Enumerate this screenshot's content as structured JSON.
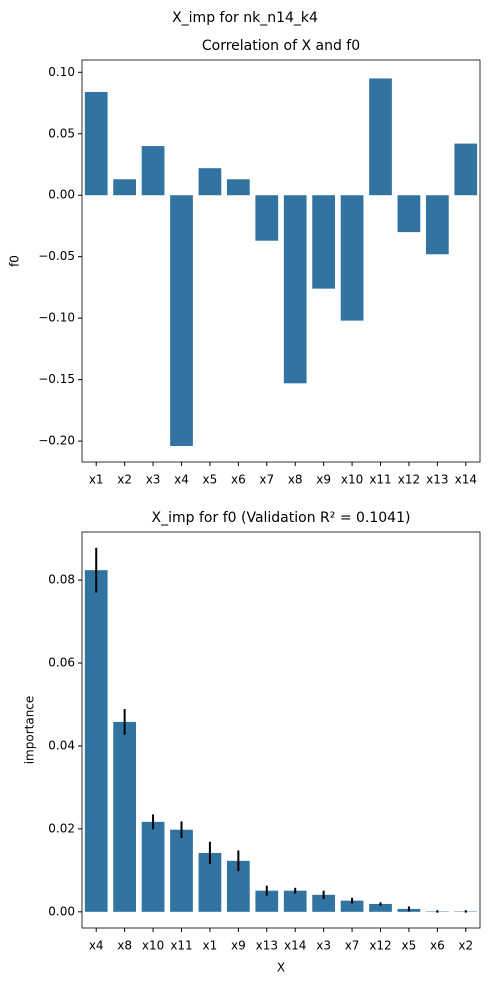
{
  "title": "X_imp for nk_n14_k4",
  "chart_data": [
    {
      "type": "bar",
      "title": "Correlation of X and f0",
      "y_label": "f0",
      "categories": [
        "x1",
        "x2",
        "x3",
        "x4",
        "x5",
        "x6",
        "x7",
        "x8",
        "x9",
        "x10",
        "x11",
        "x12",
        "x13",
        "x14"
      ],
      "values": [
        0.084,
        0.013,
        0.04,
        -0.204,
        0.022,
        0.013,
        -0.037,
        -0.153,
        -0.076,
        -0.102,
        0.095,
        -0.03,
        -0.048,
        0.042
      ],
      "color": "#3274a1",
      "ylim": [
        -0.217,
        0.11
      ],
      "yticks": [
        {
          "value": -0.2,
          "label": "−0.20"
        },
        {
          "value": -0.15,
          "label": "−0.15"
        },
        {
          "value": -0.1,
          "label": "−0.10"
        },
        {
          "value": -0.05,
          "label": "−0.05"
        },
        {
          "value": 0,
          "label": "0.00"
        },
        {
          "value": 0.05,
          "label": "0.05"
        },
        {
          "value": 0.1,
          "label": "0.10"
        }
      ]
    },
    {
      "type": "bar",
      "title": "X_imp for f0 (Validation R² = 0.1041)",
      "x_label": "X",
      "y_label": "importance",
      "categories": [
        "x4",
        "x8",
        "x10",
        "x11",
        "x1",
        "x9",
        "x13",
        "x14",
        "x3",
        "x7",
        "x12",
        "x5",
        "x6",
        "x2"
      ],
      "values": [
        0.0824,
        0.0458,
        0.0217,
        0.0198,
        0.0142,
        0.0123,
        0.0051,
        0.0051,
        0.0041,
        0.0027,
        0.0019,
        0.0007,
        0.0001,
        0.0001
      ],
      "errors": [
        0.0054,
        0.0031,
        0.0018,
        0.002,
        0.0027,
        0.0025,
        0.0012,
        0.0007,
        0.001,
        0.0007,
        0.0004,
        0.0006,
        0.0003,
        0.0003
      ],
      "color": "#3274a1",
      "ylim": [
        -0.0039,
        0.0916
      ],
      "yticks": [
        {
          "value": 0,
          "label": "0.00"
        },
        {
          "value": 0.02,
          "label": "0.02"
        },
        {
          "value": 0.04,
          "label": "0.04"
        },
        {
          "value": 0.06,
          "label": "0.06"
        },
        {
          "value": 0.08,
          "label": "0.08"
        }
      ]
    }
  ]
}
